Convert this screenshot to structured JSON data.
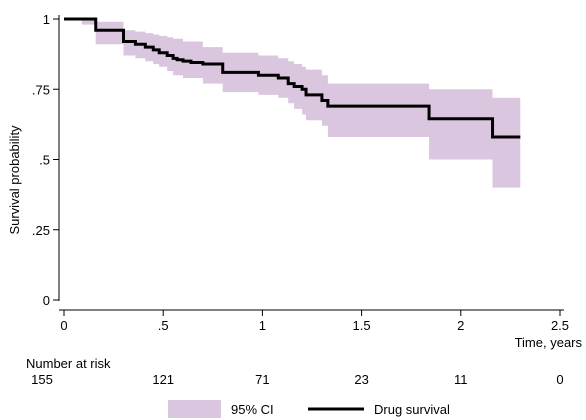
{
  "chart_data": {
    "type": "line",
    "title": "",
    "xlabel": "Time, years",
    "ylabel": "Survival probability",
    "xlim": [
      0,
      2.5
    ],
    "ylim": [
      0,
      1
    ],
    "x_ticks": [
      0,
      0.5,
      1,
      1.5,
      2,
      2.5
    ],
    "x_tick_labels": [
      "0",
      ".5",
      "1",
      "1.5",
      "2",
      "2.5"
    ],
    "y_ticks": [
      0,
      0.25,
      0.5,
      0.75,
      1
    ],
    "y_tick_labels": [
      "0",
      ".25",
      ".5",
      ".75",
      "1"
    ],
    "grid": false,
    "legend_position": "bottom",
    "colors": {
      "line": "#000000",
      "ci": "#dbc6df"
    },
    "series": [
      {
        "name": "Drug survival",
        "kind": "step",
        "x": [
          0,
          0.16,
          0.3,
          0.36,
          0.41,
          0.45,
          0.48,
          0.52,
          0.55,
          0.57,
          0.6,
          0.64,
          0.7,
          0.8,
          0.98,
          1.08,
          1.13,
          1.16,
          1.2,
          1.22,
          1.3,
          1.33,
          1.84,
          2.16,
          2.3
        ],
        "y": [
          1.0,
          0.96,
          0.92,
          0.91,
          0.9,
          0.89,
          0.88,
          0.87,
          0.86,
          0.855,
          0.85,
          0.845,
          0.84,
          0.81,
          0.8,
          0.79,
          0.77,
          0.76,
          0.75,
          0.73,
          0.71,
          0.69,
          0.645,
          0.58,
          0.58
        ]
      },
      {
        "name": "95% CI",
        "kind": "band",
        "x": [
          0,
          0.09,
          0.16,
          0.3,
          0.36,
          0.41,
          0.45,
          0.48,
          0.52,
          0.55,
          0.6,
          0.7,
          0.8,
          0.98,
          1.08,
          1.13,
          1.16,
          1.2,
          1.22,
          1.3,
          1.33,
          1.84,
          2.16,
          2.3
        ],
        "upper": [
          1.0,
          1.0,
          0.99,
          0.96,
          0.955,
          0.95,
          0.945,
          0.94,
          0.935,
          0.93,
          0.92,
          0.9,
          0.88,
          0.87,
          0.86,
          0.85,
          0.84,
          0.83,
          0.82,
          0.8,
          0.77,
          0.75,
          0.72,
          0.72
        ],
        "lower": [
          1.0,
          0.98,
          0.91,
          0.87,
          0.86,
          0.85,
          0.84,
          0.83,
          0.815,
          0.8,
          0.79,
          0.77,
          0.74,
          0.73,
          0.72,
          0.7,
          0.68,
          0.66,
          0.64,
          0.62,
          0.58,
          0.5,
          0.4,
          0.4
        ]
      }
    ]
  },
  "risk_table": {
    "title": "Number at risk",
    "times": [
      0,
      0.5,
      1,
      1.5,
      2,
      2.5
    ],
    "counts": [
      "155",
      "121",
      "71",
      "23",
      "11",
      "0"
    ]
  },
  "legend": {
    "ci_label": "95% CI",
    "line_label": "Drug survival"
  }
}
